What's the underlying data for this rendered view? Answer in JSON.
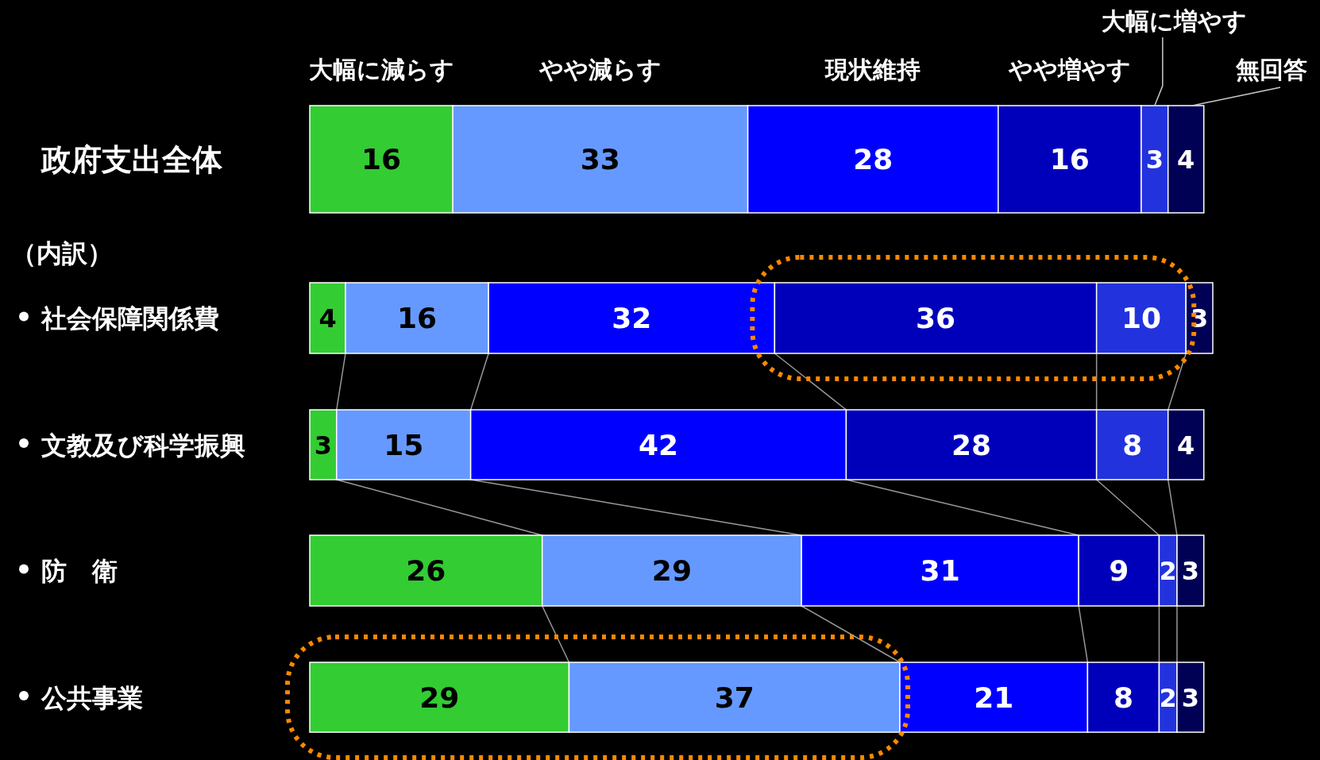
{
  "chart_data": {
    "type": "bar",
    "orientation": "horizontal",
    "stacked": true,
    "data_labels": true,
    "legend": "top",
    "categories": [
      "政府支出全体",
      "社会保障関係費",
      "文教及び科学振興",
      "防　衛",
      "公共事業"
    ],
    "annotations": [
      "（内訳）"
    ],
    "series": [
      {
        "name": "大幅に減らす",
        "color": "#33cc33",
        "values": [
          16,
          4,
          3,
          26,
          29
        ]
      },
      {
        "name": "やや減らす",
        "color": "#6699ff",
        "values": [
          33,
          16,
          15,
          29,
          37
        ]
      },
      {
        "name": "現状維持",
        "color": "#0000ff",
        "values": [
          28,
          32,
          42,
          31,
          21
        ]
      },
      {
        "name": "やや増やす",
        "color": "#0000bb",
        "values": [
          16,
          36,
          28,
          9,
          8
        ]
      },
      {
        "name": "大幅に増やす",
        "color": "#2233dd",
        "values": [
          3,
          10,
          8,
          2,
          2
        ]
      },
      {
        "name": "無回答",
        "color": "#000055",
        "values": [
          4,
          3,
          4,
          3,
          3
        ]
      }
    ]
  }
}
